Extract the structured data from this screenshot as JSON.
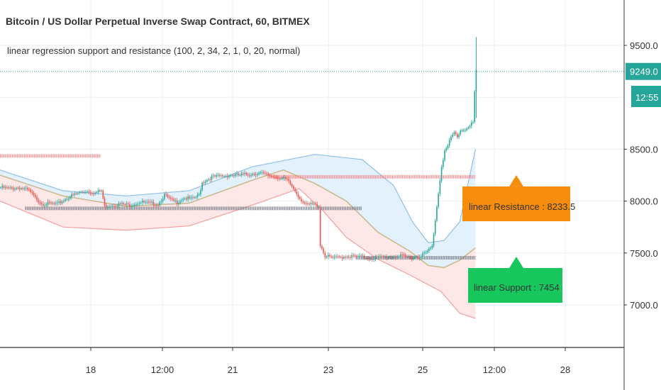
{
  "header": {
    "title": "Bitcoin / US Dollar Perpetual Inverse Swap Contract, 60, BITMEX",
    "indicator": "linear regression support and resistance (100, 2, 34, 2, 1, 0, 20, normal)"
  },
  "colors": {
    "up": "#26a69a",
    "down": "#ef5350",
    "resistance": "#f77c80",
    "support": "#787b86",
    "upper_band": "#90bfe8",
    "lower_band": "#f4a0a0",
    "mid_line": "#c8b88a",
    "upper_fill": "#ddeefb",
    "lower_fill": "#fde3e3",
    "grid": "#e9eff4",
    "axis": "#333333",
    "price_badge": "#26a69a",
    "resistance_label": "#f68d0f",
    "support_label": "#17c75d"
  },
  "chart_data": {
    "type": "candlestick",
    "symbol": "Bitcoin / US Dollar Perpetual Inverse Swap Contract",
    "interval": "60",
    "exchange": "BITMEX",
    "y_ticks": [
      7000,
      7500,
      8000,
      8500,
      9000,
      9500
    ],
    "y_tick_labels": [
      "7000.0",
      "7500.0",
      "8000.0",
      "8500.0",
      "9500.0"
    ],
    "ylim": [
      6600,
      9800
    ],
    "x_tick_labels": [
      "18",
      "12:00",
      "21",
      "23",
      "25",
      "12:00",
      "28"
    ],
    "last_price": "9249.0",
    "countdown": "12:55",
    "price_path": [
      [
        0,
        8130
      ],
      [
        6,
        8120
      ],
      [
        12,
        8130
      ],
      [
        18,
        8100
      ],
      [
        22,
        8030
      ],
      [
        26,
        7980
      ],
      [
        30,
        7975
      ],
      [
        36,
        7970
      ],
      [
        42,
        8030
      ],
      [
        48,
        8070
      ],
      [
        54,
        8100
      ],
      [
        60,
        8080
      ],
      [
        64,
        8100
      ],
      [
        66,
        7950
      ],
      [
        70,
        7960
      ],
      [
        76,
        7970
      ],
      [
        82,
        7960
      ],
      [
        88,
        7990
      ],
      [
        94,
        7980
      ],
      [
        100,
        7970
      ],
      [
        104,
        8060
      ],
      [
        108,
        8010
      ],
      [
        112,
        7990
      ],
      [
        116,
        8030
      ],
      [
        122,
        8020
      ],
      [
        126,
        8060
      ],
      [
        128,
        8180
      ],
      [
        134,
        8230
      ],
      [
        140,
        8240
      ],
      [
        146,
        8250
      ],
      [
        152,
        8250
      ],
      [
        158,
        8260
      ],
      [
        164,
        8270
      ],
      [
        170,
        8250
      ],
      [
        176,
        8230
      ],
      [
        182,
        8200
      ],
      [
        186,
        8120
      ],
      [
        190,
        8030
      ],
      [
        194,
        7960
      ],
      [
        198,
        7970
      ],
      [
        202,
        7950
      ],
      [
        203,
        7580
      ],
      [
        206,
        7470
      ],
      [
        212,
        7450
      ],
      [
        220,
        7470
      ],
      [
        228,
        7460
      ],
      [
        236,
        7450
      ],
      [
        244,
        7460
      ],
      [
        252,
        7470
      ],
      [
        260,
        7460
      ],
      [
        266,
        7470
      ],
      [
        270,
        7500
      ],
      [
        274,
        7560
      ],
      [
        276,
        7820
      ],
      [
        278,
        8080
      ],
      [
        280,
        8340
      ],
      [
        282,
        8480
      ],
      [
        284,
        8530
      ],
      [
        286,
        8610
      ],
      [
        288,
        8660
      ],
      [
        290,
        8620
      ],
      [
        292,
        8680
      ],
      [
        294,
        8690
      ],
      [
        296,
        8700
      ],
      [
        298,
        8720
      ],
      [
        300,
        8760
      ],
      [
        301,
        9050
      ],
      [
        302,
        9249
      ]
    ],
    "regression_bands": {
      "upper": [
        [
          0,
          8300
        ],
        [
          40,
          8100
        ],
        [
          80,
          8050
        ],
        [
          120,
          8100
        ],
        [
          160,
          8330
        ],
        [
          200,
          8450
        ],
        [
          230,
          8400
        ],
        [
          250,
          8150
        ],
        [
          262,
          7800
        ],
        [
          272,
          7600
        ],
        [
          282,
          7620
        ],
        [
          292,
          7800
        ],
        [
          302,
          8500
        ]
      ],
      "middle": [
        [
          0,
          8250
        ],
        [
          40,
          8050
        ],
        [
          80,
          7950
        ],
        [
          120,
          7980
        ],
        [
          160,
          8200
        ],
        [
          180,
          8300
        ],
        [
          200,
          8170
        ],
        [
          220,
          8000
        ],
        [
          240,
          7700
        ],
        [
          260,
          7520
        ],
        [
          272,
          7380
        ],
        [
          282,
          7360
        ],
        [
          292,
          7430
        ],
        [
          302,
          7550
        ]
      ],
      "lower": [
        [
          0,
          8000
        ],
        [
          40,
          7750
        ],
        [
          80,
          7720
        ],
        [
          120,
          7760
        ],
        [
          160,
          7960
        ],
        [
          190,
          8120
        ],
        [
          205,
          7910
        ],
        [
          220,
          7650
        ],
        [
          240,
          7440
        ],
        [
          260,
          7290
        ],
        [
          280,
          7130
        ],
        [
          292,
          6920
        ],
        [
          302,
          6870
        ]
      ]
    },
    "levels": [
      {
        "name": "resistance",
        "value": 8233.5,
        "x0": 170,
        "x1": 302
      },
      {
        "name": "support",
        "value": 7454,
        "x0": 226,
        "x1": 302
      },
      {
        "name": "past_resistance",
        "value": 8435,
        "x0": 0,
        "x1": 64
      },
      {
        "name": "past_support",
        "value": 7930,
        "x0": 16,
        "x1": 230
      }
    ],
    "labels": {
      "resistance": "linear Resistance : 8233.5",
      "support": "linear Support : 7454"
    }
  }
}
